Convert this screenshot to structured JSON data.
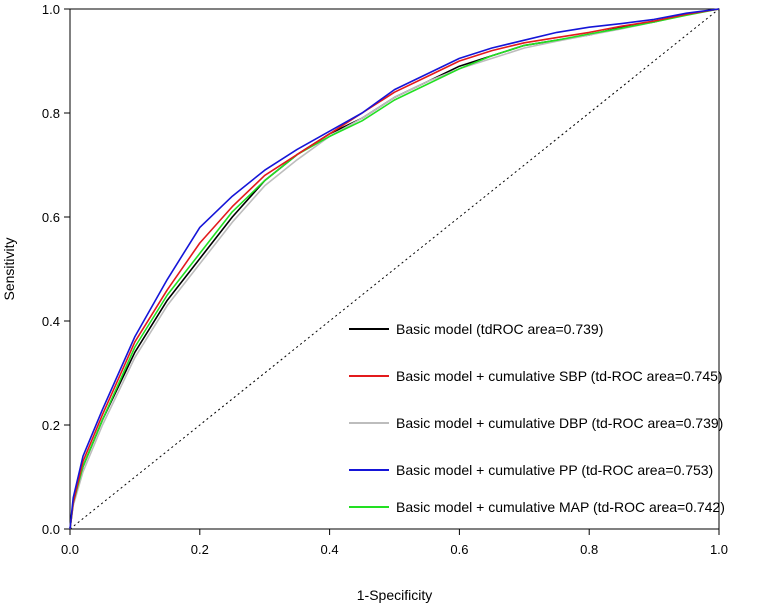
{
  "chart_data": {
    "type": "line",
    "title": "",
    "xlabel": "1-Specificity",
    "ylabel": "Sensitivity",
    "xlim": [
      0,
      1
    ],
    "ylim": [
      0,
      1
    ],
    "xticks": [
      "0.0",
      "0.2",
      "0.4",
      "0.6",
      "0.8",
      "1.0"
    ],
    "yticks": [
      "0.0",
      "0.2",
      "0.4",
      "0.6",
      "0.8",
      "1.0"
    ],
    "grid": false,
    "legend_position": "bottom-right",
    "reference_line": {
      "style": "dotted",
      "x": [
        0,
        1
      ],
      "y": [
        0,
        1
      ]
    },
    "series": [
      {
        "name": "Basic model (tdROC area=0.739)",
        "color": "#000000",
        "x": [
          0,
          0.005,
          0.02,
          0.05,
          0.1,
          0.15,
          0.2,
          0.25,
          0.3,
          0.35,
          0.4,
          0.45,
          0.5,
          0.55,
          0.6,
          0.65,
          0.7,
          0.75,
          0.8,
          0.85,
          0.9,
          0.95,
          1.0
        ],
        "y": [
          0,
          0.05,
          0.12,
          0.21,
          0.34,
          0.44,
          0.52,
          0.6,
          0.67,
          0.72,
          0.76,
          0.79,
          0.83,
          0.86,
          0.89,
          0.91,
          0.93,
          0.94,
          0.95,
          0.965,
          0.975,
          0.99,
          1.0
        ]
      },
      {
        "name": "Basic model + cumulative SBP (td-ROC area=0.745)",
        "color": "#e31a1c",
        "x": [
          0,
          0.005,
          0.02,
          0.05,
          0.1,
          0.15,
          0.2,
          0.25,
          0.3,
          0.35,
          0.4,
          0.45,
          0.5,
          0.55,
          0.6,
          0.65,
          0.7,
          0.75,
          0.8,
          0.85,
          0.9,
          0.95,
          1.0
        ],
        "y": [
          0,
          0.05,
          0.13,
          0.22,
          0.36,
          0.46,
          0.55,
          0.62,
          0.68,
          0.72,
          0.76,
          0.8,
          0.84,
          0.87,
          0.9,
          0.92,
          0.935,
          0.945,
          0.955,
          0.967,
          0.977,
          0.99,
          1.0
        ]
      },
      {
        "name": "Basic model + cumulative DBP (td-ROC area=0.739)",
        "color": "#bdbdbd",
        "x": [
          0,
          0.005,
          0.02,
          0.05,
          0.1,
          0.15,
          0.2,
          0.25,
          0.3,
          0.35,
          0.4,
          0.45,
          0.5,
          0.55,
          0.6,
          0.65,
          0.7,
          0.75,
          0.8,
          0.85,
          0.9,
          0.95,
          1.0
        ],
        "y": [
          0,
          0.045,
          0.11,
          0.2,
          0.33,
          0.43,
          0.51,
          0.59,
          0.66,
          0.71,
          0.755,
          0.79,
          0.83,
          0.86,
          0.885,
          0.905,
          0.925,
          0.938,
          0.95,
          0.962,
          0.975,
          0.99,
          1.0
        ]
      },
      {
        "name": "Basic model + cumulative PP (td-ROC area=0.753)",
        "color": "#1515d8",
        "x": [
          0,
          0.005,
          0.02,
          0.05,
          0.1,
          0.15,
          0.2,
          0.25,
          0.3,
          0.35,
          0.4,
          0.45,
          0.5,
          0.55,
          0.6,
          0.65,
          0.7,
          0.75,
          0.8,
          0.85,
          0.9,
          0.95,
          1.0
        ],
        "y": [
          0,
          0.06,
          0.14,
          0.23,
          0.37,
          0.48,
          0.58,
          0.64,
          0.69,
          0.73,
          0.765,
          0.8,
          0.845,
          0.875,
          0.905,
          0.925,
          0.94,
          0.955,
          0.965,
          0.972,
          0.98,
          0.992,
          1.0
        ]
      },
      {
        "name": "Basic model + cumulative MAP (td-ROC area=0.742)",
        "color": "#22e022",
        "x": [
          0,
          0.005,
          0.02,
          0.05,
          0.1,
          0.15,
          0.2,
          0.25,
          0.3,
          0.35,
          0.4,
          0.45,
          0.5,
          0.55,
          0.6,
          0.65,
          0.7,
          0.75,
          0.8,
          0.85,
          0.9,
          0.95,
          1.0
        ],
        "y": [
          0,
          0.05,
          0.12,
          0.21,
          0.35,
          0.45,
          0.53,
          0.61,
          0.67,
          0.72,
          0.755,
          0.785,
          0.825,
          0.855,
          0.885,
          0.91,
          0.93,
          0.94,
          0.952,
          0.963,
          0.975,
          0.988,
          1.0
        ]
      }
    ]
  }
}
